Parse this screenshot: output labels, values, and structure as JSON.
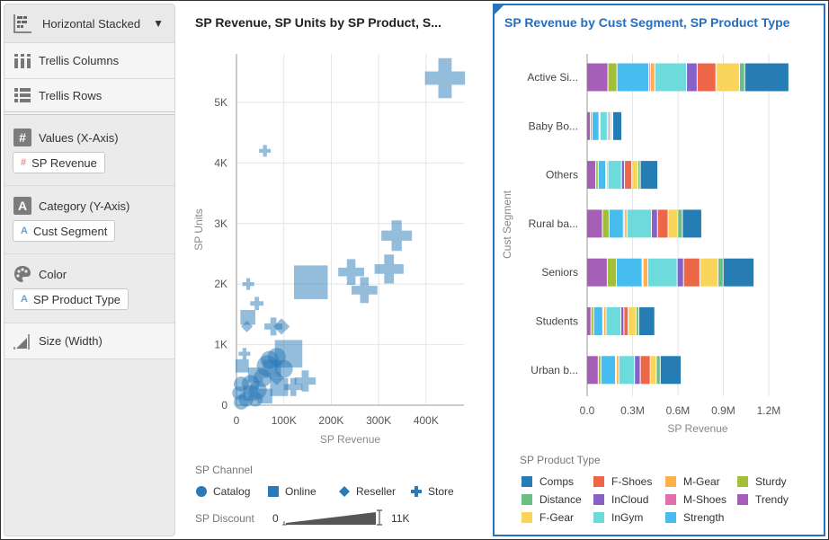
{
  "left_panel": {
    "chart_type": "Horizontal Stacked",
    "trellis_columns": "Trellis Columns",
    "trellis_rows": "Trellis Rows",
    "values": {
      "label": "Values (X-Axis)",
      "pill": "SP Revenue"
    },
    "category": {
      "label": "Category (Y-Axis)",
      "pill": "Cust Segment"
    },
    "color": {
      "label": "Color",
      "pill": "SP Product Type"
    },
    "size": {
      "label": "Size (Width)"
    }
  },
  "chart_data": [
    {
      "type": "scatter",
      "title": "SP Revenue, SP Units by SP Product, S...",
      "xlabel": "SP Revenue",
      "ylabel": "SP Units",
      "xlim": [
        0,
        480000
      ],
      "ylim": [
        0,
        5800
      ],
      "xticks": [
        "0",
        "100K",
        "200K",
        "300K",
        "400K"
      ],
      "yticks": [
        "0",
        "1K",
        "2K",
        "3K",
        "4K",
        "5K"
      ],
      "grid": true,
      "shape_legend": {
        "title": "SP Channel",
        "items": [
          {
            "name": "Catalog",
            "shape": "circle"
          },
          {
            "name": "Online",
            "shape": "square"
          },
          {
            "name": "Reseller",
            "shape": "diamond"
          },
          {
            "name": "Store",
            "shape": "cross"
          }
        ]
      },
      "size_legend": {
        "title": "SP Discount",
        "min": "0",
        "max": "11K"
      },
      "color": "#2a7ab8",
      "points": [
        {
          "channel": "Store",
          "revenue": 440000,
          "units": 5400,
          "discount": 11000
        },
        {
          "channel": "Store",
          "revenue": 60000,
          "units": 4200,
          "discount": 2000
        },
        {
          "channel": "Store",
          "revenue": 338000,
          "units": 2800,
          "discount": 8000
        },
        {
          "channel": "Store",
          "revenue": 322000,
          "units": 2250,
          "discount": 7500
        },
        {
          "channel": "Store",
          "revenue": 242000,
          "units": 2200,
          "discount": 6500
        },
        {
          "channel": "Store",
          "revenue": 270000,
          "units": 1900,
          "discount": 6500
        },
        {
          "channel": "Store",
          "revenue": 25000,
          "units": 2000,
          "discount": 2000
        },
        {
          "channel": "Store",
          "revenue": 43000,
          "units": 1680,
          "discount": 2500
        },
        {
          "channel": "Store",
          "revenue": 78000,
          "units": 1300,
          "discount": 4000
        },
        {
          "channel": "Store",
          "revenue": 17000,
          "units": 850,
          "discount": 2000
        },
        {
          "channel": "Store",
          "revenue": 120000,
          "units": 300,
          "discount": 4000
        },
        {
          "channel": "Store",
          "revenue": 145000,
          "units": 400,
          "discount": 5000
        },
        {
          "channel": "Online",
          "revenue": 157000,
          "units": 2030,
          "discount": 9000
        },
        {
          "channel": "Online",
          "revenue": 24000,
          "units": 1450,
          "discount": 3000
        },
        {
          "channel": "Online",
          "revenue": 110000,
          "units": 850,
          "discount": 7000
        },
        {
          "channel": "Online",
          "revenue": 12000,
          "units": 650,
          "discount": 2500
        },
        {
          "channel": "Online",
          "revenue": 40000,
          "units": 500,
          "discount": 3000
        },
        {
          "channel": "Online",
          "revenue": 90000,
          "units": 300,
          "discount": 4000
        },
        {
          "channel": "Online",
          "revenue": 60000,
          "units": 150,
          "discount": 3000
        },
        {
          "channel": "Online",
          "revenue": 30000,
          "units": 200,
          "discount": 3000
        },
        {
          "channel": "Online",
          "revenue": 75000,
          "units": 600,
          "discount": 4000
        },
        {
          "channel": "Reseller",
          "revenue": 22000,
          "units": 1300,
          "discount": 2000
        },
        {
          "channel": "Reseller",
          "revenue": 95000,
          "units": 1300,
          "discount": 3500
        },
        {
          "channel": "Reseller",
          "revenue": 85000,
          "units": 450,
          "discount": 3000
        },
        {
          "channel": "Catalog",
          "revenue": 10000,
          "units": 50,
          "discount": 3000
        },
        {
          "channel": "Catalog",
          "revenue": 20000,
          "units": 100,
          "discount": 3000
        },
        {
          "channel": "Catalog",
          "revenue": 30000,
          "units": 350,
          "discount": 4000
        },
        {
          "channel": "Catalog",
          "revenue": 45000,
          "units": 250,
          "discount": 4000
        },
        {
          "channel": "Catalog",
          "revenue": 55000,
          "units": 450,
          "discount": 4000
        },
        {
          "channel": "Catalog",
          "revenue": 70000,
          "units": 750,
          "discount": 4000
        },
        {
          "channel": "Catalog",
          "revenue": 85000,
          "units": 800,
          "discount": 4000
        },
        {
          "channel": "Catalog",
          "revenue": 100000,
          "units": 600,
          "discount": 4000
        },
        {
          "channel": "Catalog",
          "revenue": 10000,
          "units": 350,
          "discount": 3000
        },
        {
          "channel": "Catalog",
          "revenue": 5000,
          "units": 200,
          "discount": 2500
        },
        {
          "channel": "Catalog",
          "revenue": 65000,
          "units": 650,
          "discount": 5000
        },
        {
          "channel": "Catalog",
          "revenue": 40000,
          "units": 100,
          "discount": 3000
        }
      ]
    },
    {
      "type": "bar",
      "orientation": "horizontal",
      "stacked": true,
      "title": "SP Revenue by Cust Segment, SP Product Type",
      "xlabel": "SP Revenue",
      "ylabel": "Cust Segment",
      "xlim": [
        0,
        1400000
      ],
      "xticks": [
        "0.0",
        "0.3M",
        "0.6M",
        "0.9M",
        "1.2M"
      ],
      "categories": [
        "Active Si...",
        "Baby Bo...",
        "Others",
        "Rural ba...",
        "Seniors",
        "Students",
        "Urban b..."
      ],
      "legend": {
        "title": "SP Product Type",
        "position": "bottom",
        "items": [
          "Comps",
          "F-Shoes",
          "M-Gear",
          "Sturdy",
          "Distance",
          "InCloud",
          "M-Shoes",
          "Trendy",
          "F-Gear",
          "InGym",
          "Strength"
        ]
      },
      "series": [
        {
          "name": "Trendy",
          "color": "#a65fb9",
          "values": [
            140000,
            24000,
            60000,
            104000,
            136000,
            28000,
            76000
          ]
        },
        {
          "name": "Sturdy",
          "color": "#a3bf3a",
          "values": [
            60000,
            12000,
            16000,
            44000,
            60000,
            18000,
            18000
          ]
        },
        {
          "name": "Strength",
          "color": "#47bcee",
          "values": [
            210000,
            45000,
            50000,
            94000,
            170000,
            60000,
            96000
          ]
        },
        {
          "name": "M-Shoes",
          "color": "#e46fb0",
          "values": [
            10000,
            3000,
            4000,
            8000,
            6000,
            6000,
            6000
          ]
        },
        {
          "name": "M-Gear",
          "color": "#fdb04b",
          "values": [
            30000,
            4000,
            10000,
            16000,
            32000,
            16000,
            16000
          ]
        },
        {
          "name": "InGym",
          "color": "#6ddbdb",
          "values": [
            210000,
            48000,
            90000,
            162000,
            194000,
            98000,
            104000
          ]
        },
        {
          "name": "InCloud",
          "color": "#8662c8",
          "values": [
            70000,
            8000,
            20000,
            40000,
            42000,
            20000,
            38000
          ]
        },
        {
          "name": "F-Shoes",
          "color": "#ed6647",
          "values": [
            124000,
            10000,
            48000,
            70000,
            108000,
            28000,
            66000
          ]
        },
        {
          "name": "F-Gear",
          "color": "#fad55c",
          "values": [
            156000,
            12000,
            40000,
            64000,
            120000,
            52000,
            40000
          ]
        },
        {
          "name": "Distance",
          "color": "#68c182",
          "values": [
            34000,
            6000,
            16000,
            30000,
            34000,
            18000,
            26000
          ]
        },
        {
          "name": "Comps",
          "color": "#267db3",
          "values": [
            292000,
            60000,
            116000,
            128000,
            204000,
            106000,
            138000
          ]
        }
      ]
    }
  ]
}
